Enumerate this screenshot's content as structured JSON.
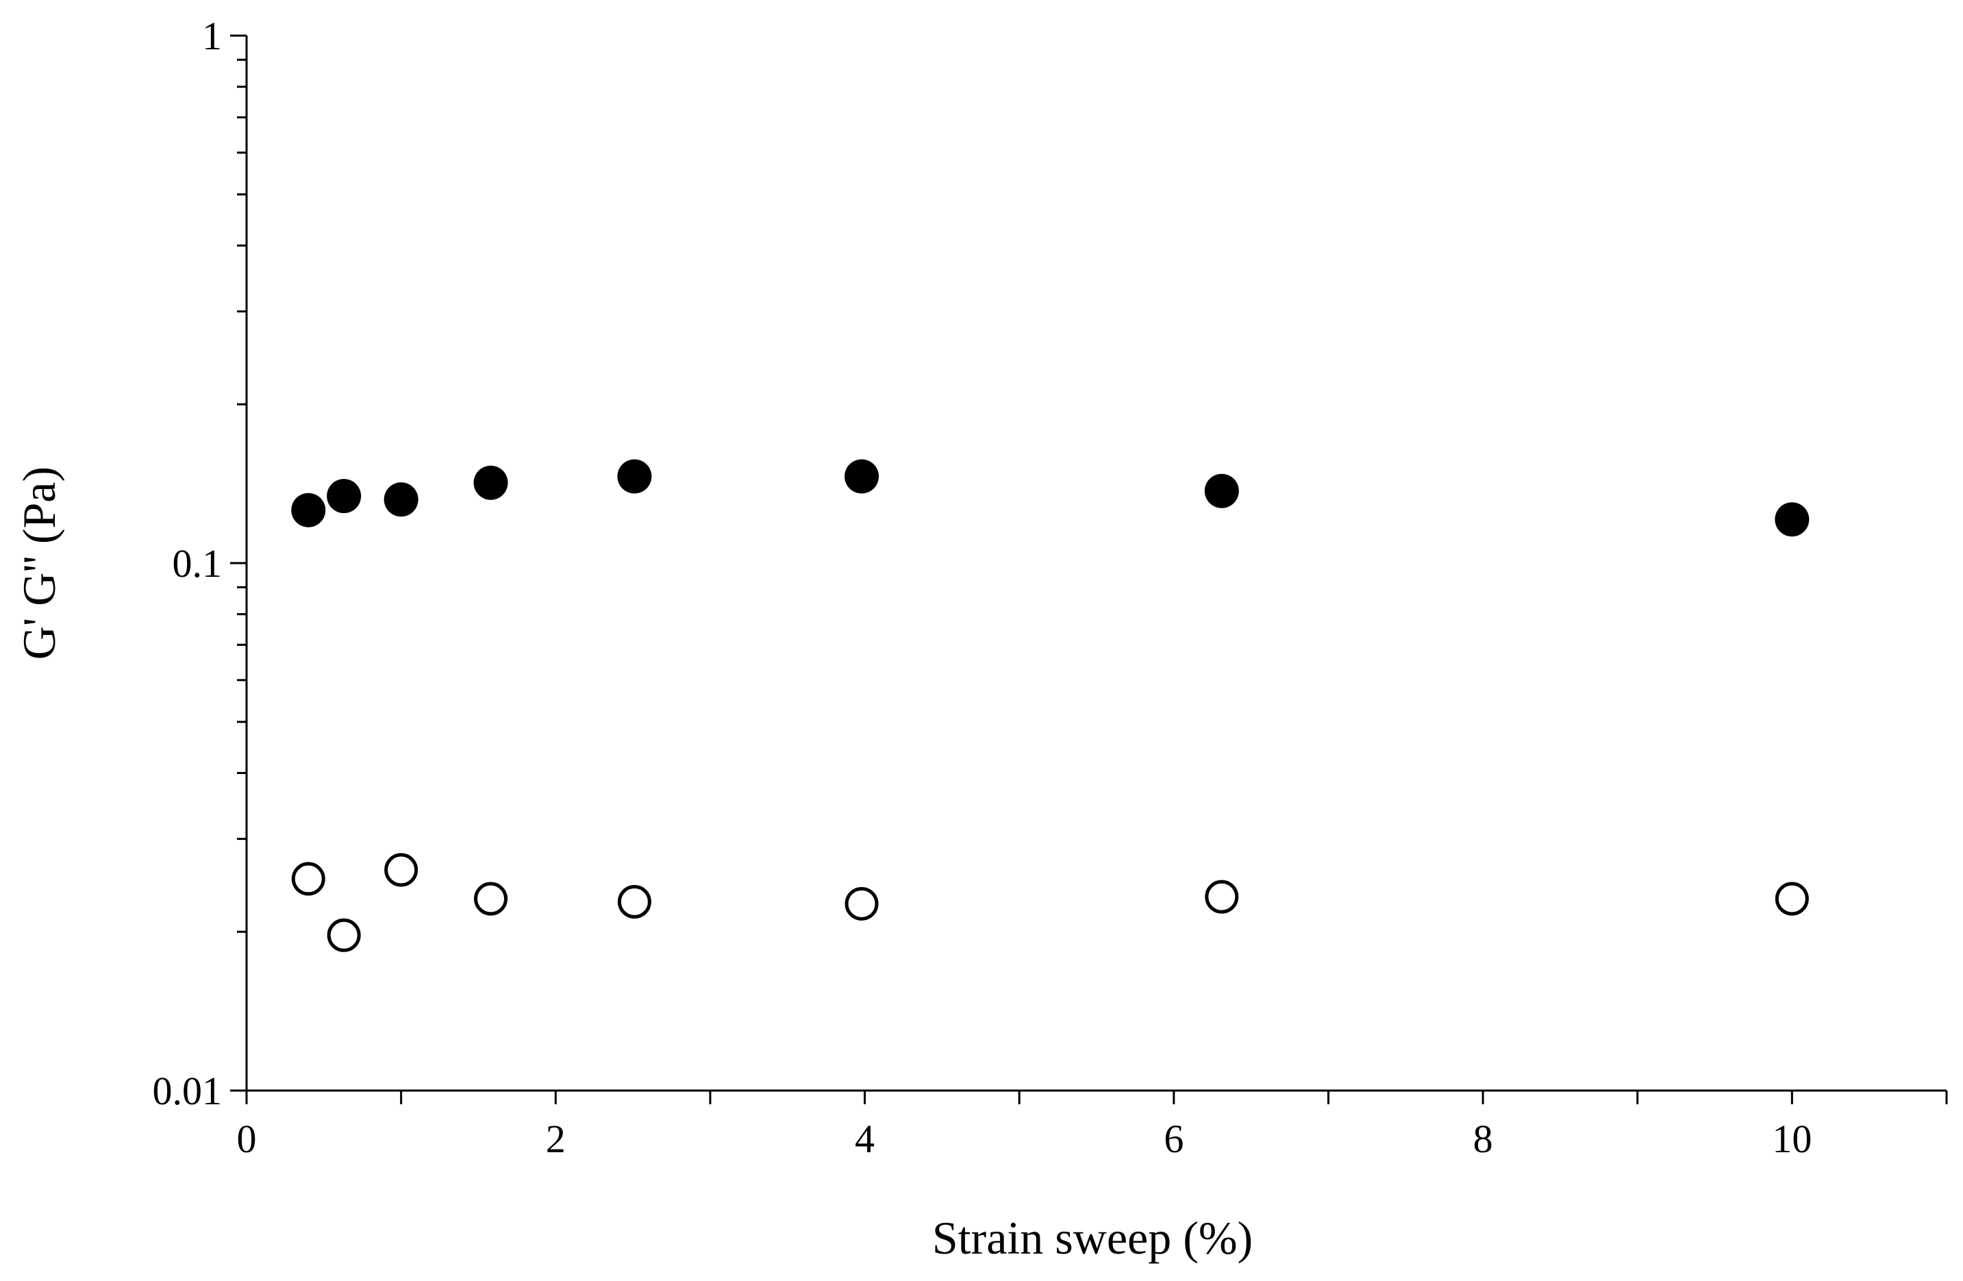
{
  "chart_data": {
    "type": "scatter",
    "title": "",
    "xlabel": "Strain sweep (%)",
    "ylabel": "G' G'' (Pa)",
    "xlim": [
      0,
      11
    ],
    "ylim": [
      0.01,
      1
    ],
    "yscale": "log",
    "grid": false,
    "legend": "none",
    "x_ticks": [
      0,
      2,
      4,
      6,
      8,
      10
    ],
    "x_tick_labels": [
      "0",
      "2",
      "4",
      "6",
      "8",
      "10"
    ],
    "y_ticks": [
      0.01,
      0.1,
      1
    ],
    "y_tick_labels": [
      "0.01",
      "0.1",
      "1"
    ],
    "series": [
      {
        "marker": "filled-circle",
        "color": "#000000",
        "x": [
          0.4,
          0.63,
          1.0,
          1.58,
          2.51,
          3.98,
          6.31,
          10.0
        ],
        "y": [
          0.126,
          0.134,
          0.132,
          0.142,
          0.146,
          0.146,
          0.137,
          0.121
        ]
      },
      {
        "marker": "open-circle",
        "color": "#000000",
        "x": [
          0.4,
          0.63,
          1.0,
          1.58,
          2.51,
          3.98,
          6.31,
          10.0
        ],
        "y": [
          0.0252,
          0.0197,
          0.0262,
          0.0231,
          0.0228,
          0.0226,
          0.0233,
          0.0231
        ]
      }
    ]
  }
}
